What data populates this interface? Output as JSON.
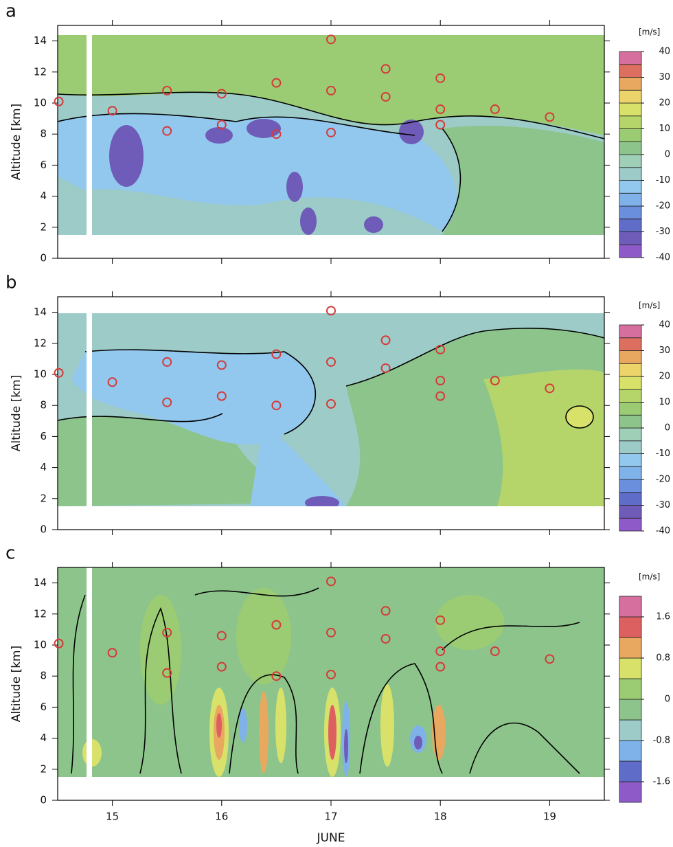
{
  "chart_data": [
    {
      "type": "contour",
      "panel_label": "a",
      "ylabel": "Altitude [km]",
      "show_xtick_labels": false,
      "xlim": [
        14.5,
        19.5
      ],
      "xticks": [
        15,
        16,
        17,
        18,
        19
      ],
      "ylim": [
        0,
        15
      ],
      "yticks": [
        0,
        2,
        4,
        6,
        8,
        10,
        12,
        14
      ],
      "markers": {
        "color": "#d63a3a",
        "x": [
          14.51,
          15,
          15.5,
          15.5,
          16,
          16,
          16.5,
          16.5,
          17,
          17,
          17,
          17.5,
          17.5,
          18,
          18,
          18,
          18.5,
          19
        ],
        "y": [
          10.1,
          9.5,
          10.8,
          8.2,
          10.6,
          8.6,
          11.3,
          8.0,
          14.1,
          10.8,
          8.1,
          12.2,
          10.4,
          11.6,
          9.6,
          8.6,
          9.6,
          9.1
        ]
      },
      "colorbar": {
        "unit": "[m/s]",
        "levels": [
          -40,
          -35,
          -30,
          -25,
          -20,
          -15,
          -10,
          -5,
          0,
          5,
          10,
          15,
          20,
          25,
          30,
          35,
          40
        ],
        "colors": [
          "#8e5ac8",
          "#6e5cb8",
          "#5f6cc8",
          "#6a8fdc",
          "#7fb2e8",
          "#92c7ee",
          "#9ccbc8",
          "#9fcfb6",
          "#8dc48b",
          "#9bcc73",
          "#b5d56a",
          "#d8e26a",
          "#ecd36a",
          "#e8a860",
          "#dd6f60",
          "#d66f9d"
        ],
        "ticks": [
          -40,
          -30,
          -20,
          -10,
          0,
          10,
          20,
          30,
          40
        ]
      }
    },
    {
      "type": "contour",
      "panel_label": "b",
      "ylabel": "Altitude [km]",
      "show_xtick_labels": false,
      "xlim": [
        14.5,
        19.5
      ],
      "xticks": [
        15,
        16,
        17,
        18,
        19
      ],
      "ylim": [
        0,
        15
      ],
      "yticks": [
        0,
        2,
        4,
        6,
        8,
        10,
        12,
        14
      ],
      "markers": {
        "color": "#d63a3a",
        "x": [
          14.51,
          15,
          15.5,
          15.5,
          16,
          16,
          16.5,
          16.5,
          17,
          17,
          17,
          17.5,
          17.5,
          18,
          18,
          18,
          18.5,
          19
        ],
        "y": [
          10.1,
          9.5,
          10.8,
          8.2,
          10.6,
          8.6,
          11.3,
          8.0,
          14.1,
          10.8,
          8.1,
          12.2,
          10.4,
          11.6,
          9.6,
          8.6,
          9.6,
          9.1
        ]
      },
      "colorbar": {
        "unit": "[m/s]",
        "levels": [
          -40,
          -35,
          -30,
          -25,
          -20,
          -15,
          -10,
          -5,
          0,
          5,
          10,
          15,
          20,
          25,
          30,
          35,
          40
        ],
        "colors": [
          "#8e5ac8",
          "#6e5cb8",
          "#5f6cc8",
          "#6a8fdc",
          "#7fb2e8",
          "#92c7ee",
          "#9ccbc8",
          "#9fcfb6",
          "#8dc48b",
          "#9bcc73",
          "#b5d56a",
          "#d8e26a",
          "#ecd36a",
          "#e8a860",
          "#dd6f60",
          "#d66f9d"
        ],
        "ticks": [
          -40,
          -30,
          -20,
          -10,
          0,
          10,
          20,
          30,
          40
        ]
      }
    },
    {
      "type": "contour",
      "panel_label": "c",
      "ylabel": "Altitude [km]",
      "xlabel": "JUNE",
      "show_xtick_labels": true,
      "xlim": [
        14.5,
        19.5
      ],
      "xticks": [
        15,
        16,
        17,
        18,
        19
      ],
      "ylim": [
        0,
        15
      ],
      "yticks": [
        0,
        2,
        4,
        6,
        8,
        10,
        12,
        14
      ],
      "markers": {
        "color": "#d63a3a",
        "x": [
          14.51,
          15,
          15.5,
          15.5,
          16,
          16,
          16.5,
          16.5,
          17,
          17,
          17,
          17.5,
          17.5,
          18,
          18,
          18,
          18.5,
          19
        ],
        "y": [
          10.1,
          9.5,
          10.8,
          8.2,
          10.6,
          8.6,
          11.3,
          8.0,
          14.1,
          10.8,
          8.1,
          12.2,
          10.4,
          11.6,
          9.6,
          8.6,
          9.6,
          9.1
        ]
      },
      "colorbar": {
        "unit": "[m/s]",
        "levels": [
          -2,
          -1.6,
          -1.2,
          -0.8,
          -0.4,
          0,
          0.4,
          0.8,
          1.2,
          1.6,
          2
        ],
        "colors": [
          "#8e5ac8",
          "#5f6cc8",
          "#7fb2e8",
          "#9ccbc8",
          "#8dc48b",
          "#9bcc73",
          "#d8e26a",
          "#e8a860",
          "#dd6060",
          "#d66f9d"
        ],
        "ticks": [
          -1.6,
          -0.8,
          0,
          0.8,
          1.6
        ]
      }
    }
  ]
}
